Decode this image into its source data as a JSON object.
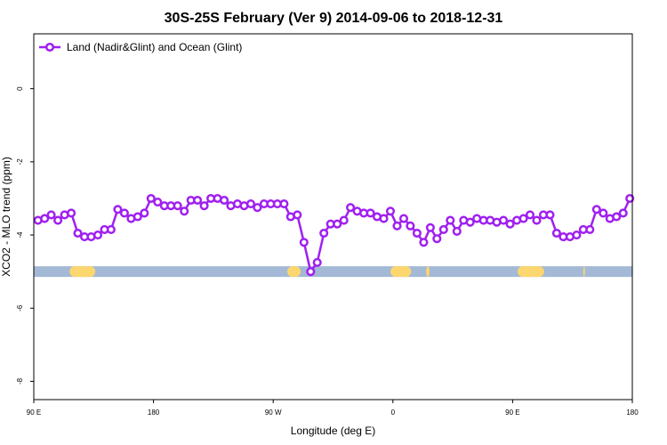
{
  "chart_data": {
    "type": "line",
    "title": "30S-25S February (Ver 9)   2014-09-06 to 2018-12-31",
    "xlabel": "Longitude (deg E)",
    "ylabel": "XCO2 - MLO trend (ppm)",
    "xlim": [
      90,
      450
    ],
    "ylim": [
      -8.5,
      1.5
    ],
    "x_ticks": [
      {
        "value": 90,
        "label": "90 E"
      },
      {
        "value": 162,
        "label": "180"
      },
      {
        "value": 234,
        "label": "90 W"
      },
      {
        "value": 306,
        "label": "0"
      },
      {
        "value": 378,
        "label": "90 E"
      },
      {
        "value": 450,
        "label": "180"
      }
    ],
    "y_ticks": [
      {
        "value": 0,
        "label": "0"
      },
      {
        "value": -2,
        "label": "-2"
      },
      {
        "value": -4,
        "label": "-4"
      },
      {
        "value": -6,
        "label": "-6"
      },
      {
        "value": -8,
        "label": "-8"
      }
    ],
    "grid": false,
    "legend_position": "top-left",
    "series": [
      {
        "name": "Land (Nadir&Glint) and Ocean (Glint)",
        "color": "#a020f0",
        "marker": "open-circle",
        "x": [
          92.5,
          96.5,
          100.5,
          104.5,
          108.5,
          112.5,
          116.5,
          120.5,
          124.5,
          128.5,
          132.5,
          136.5,
          140.5,
          144.5,
          148.5,
          152.5,
          156.5,
          160.5,
          164.5,
          168.5,
          172.5,
          176.5,
          180.5,
          184.5,
          188.5,
          192.5,
          196.5,
          200.5,
          204.5,
          208.5,
          212.5,
          216.5,
          220.5,
          224.5,
          228.5,
          232.5,
          236.5,
          240.5,
          244.5,
          248.5,
          252.5,
          256.5,
          260.5,
          264.5,
          268.5,
          272.5,
          276.5,
          280.5,
          284.5,
          288.5,
          292.5,
          296.5,
          300.5,
          304.5,
          308.5,
          312.5,
          316.5,
          320.5,
          324.5,
          328.5,
          332.5,
          336.5,
          340.5,
          344.5,
          348.5,
          352.5,
          356.5,
          360.5,
          364.5,
          368.5,
          372.5,
          376.5,
          380.5,
          384.5,
          388.5,
          392.5,
          396.5,
          400.5,
          404.5,
          408.5,
          412.5,
          416.5,
          420.5,
          424.5,
          428.5,
          432.5,
          436.5,
          440.5,
          444.5,
          448.5
        ],
        "y": [
          -3.6,
          -3.55,
          -3.45,
          -3.6,
          -3.45,
          -3.4,
          -3.95,
          -4.05,
          -4.05,
          -4.0,
          -3.85,
          -3.85,
          -3.3,
          -3.4,
          -3.55,
          -3.5,
          -3.4,
          -3.0,
          -3.1,
          -3.2,
          -3.2,
          -3.2,
          -3.35,
          -3.05,
          -3.05,
          -3.2,
          -3.0,
          -3.0,
          -3.05,
          -3.2,
          -3.15,
          -3.2,
          -3.15,
          -3.25,
          -3.15,
          -3.15,
          -3.15,
          -3.15,
          -3.5,
          -3.45,
          -4.2,
          -5.0,
          -4.75,
          -3.95,
          -3.7,
          -3.7,
          -3.6,
          -3.25,
          -3.35,
          -3.4,
          -3.4,
          -3.5,
          -3.55,
          -3.35,
          -3.75,
          -3.55,
          -3.75,
          -3.95,
          -4.2,
          -3.8,
          -4.1,
          -3.85,
          -3.6,
          -3.9,
          -3.6,
          -3.65,
          -3.55,
          -3.6,
          -3.6,
          -3.65,
          -3.6,
          -3.7,
          -3.6,
          -3.55,
          -3.45,
          -3.6,
          -3.45,
          -3.45,
          -3.95,
          -4.05,
          -4.05,
          -4.0,
          -3.85,
          -3.85,
          -3.3,
          -3.4,
          -3.55,
          -3.5,
          -3.4,
          -3.0
        ]
      }
    ],
    "surface_band": {
      "y": -5.0,
      "ocean_color": "#a3b9d6",
      "land_color": "#fcd66e",
      "land_segments": [
        [
          111.5,
          127
        ],
        [
          242.5,
          250.5
        ],
        [
          304.5,
          317
        ],
        [
          326,
          328
        ],
        [
          381,
          397
        ],
        [
          420.5,
          421.5
        ]
      ]
    }
  }
}
